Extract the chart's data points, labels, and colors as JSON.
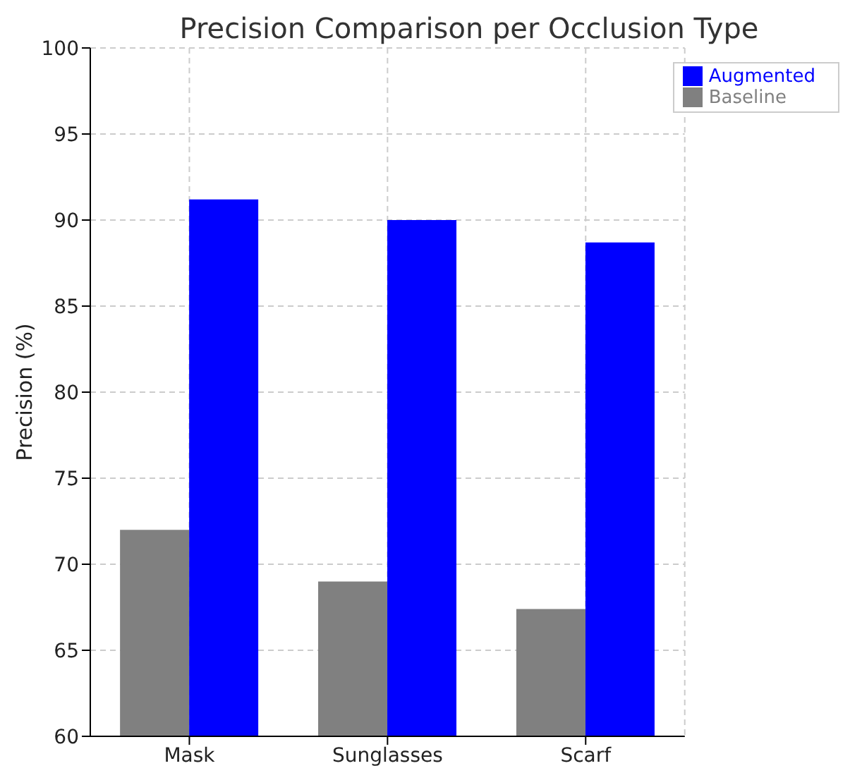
{
  "chart_data": {
    "type": "bar",
    "title": "Precision Comparison per Occlusion Type",
    "ylabel": "Precision (%)",
    "categories": [
      "Mask",
      "Sunglasses",
      "Scarf"
    ],
    "series": [
      {
        "name": "Baseline",
        "color": "#808080",
        "values": [
          72.0,
          69.0,
          67.4
        ]
      },
      {
        "name": "Augmented",
        "color": "#0000ff",
        "values": [
          91.2,
          90.0,
          88.7
        ]
      }
    ],
    "ylim": [
      60,
      100
    ],
    "yticks": [
      60,
      65,
      70,
      75,
      80,
      85,
      90,
      95,
      100
    ],
    "grid": true,
    "legend": "top right"
  }
}
